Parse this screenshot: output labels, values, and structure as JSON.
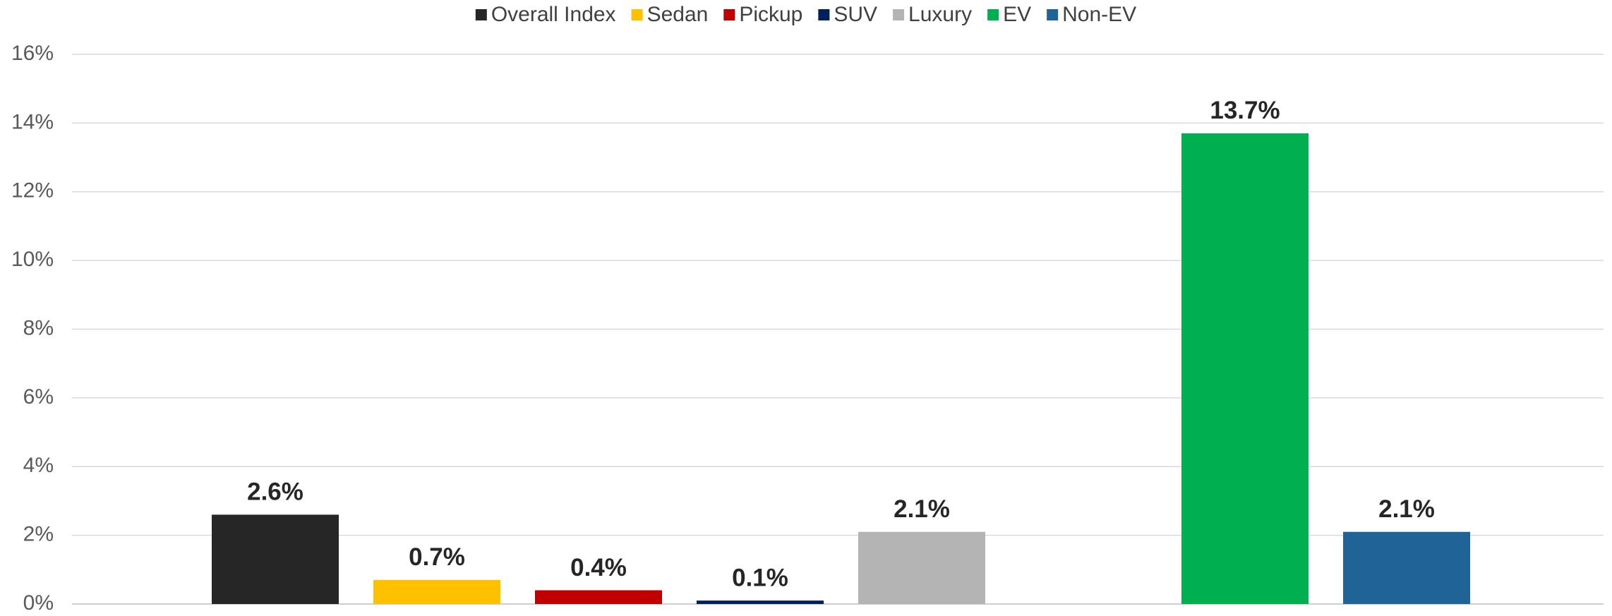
{
  "chart_data": {
    "type": "bar",
    "series": [
      {
        "name": "Overall Index",
        "color": "#262626",
        "values": [
          2.6
        ],
        "value_labels": [
          "2.6%"
        ]
      },
      {
        "name": "Sedan",
        "color": "#ffc000",
        "values": [
          0.7
        ],
        "value_labels": [
          "0.7%"
        ]
      },
      {
        "name": "Pickup",
        "color": "#c00000",
        "values": [
          0.4
        ],
        "value_labels": [
          "0.4%"
        ]
      },
      {
        "name": "SUV",
        "color": "#002060",
        "values": [
          0.1
        ],
        "value_labels": [
          "0.1%"
        ]
      },
      {
        "name": "Luxury",
        "color": "#b4b4b4",
        "values": [
          2.1
        ],
        "value_labels": [
          "2.1%"
        ]
      },
      {
        "name": "EV",
        "color": "#00b050",
        "values": [
          13.7
        ],
        "value_labels": [
          "13.7%"
        ]
      },
      {
        "name": "Non-EV",
        "color": "#1f6397",
        "values": [
          2.1
        ],
        "value_labels": [
          "2.1%"
        ]
      }
    ],
    "ylim": [
      0,
      16
    ],
    "yticks": [
      {
        "value": 0,
        "label": "0%"
      },
      {
        "value": 2,
        "label": "2%"
      },
      {
        "value": 4,
        "label": "4%"
      },
      {
        "value": 6,
        "label": "6%"
      },
      {
        "value": 8,
        "label": "8%"
      },
      {
        "value": 10,
        "label": "10%"
      },
      {
        "value": 12,
        "label": "12%"
      },
      {
        "value": 14,
        "label": "14%"
      },
      {
        "value": 16,
        "label": "16%"
      }
    ],
    "grid": true,
    "legend": "top"
  }
}
